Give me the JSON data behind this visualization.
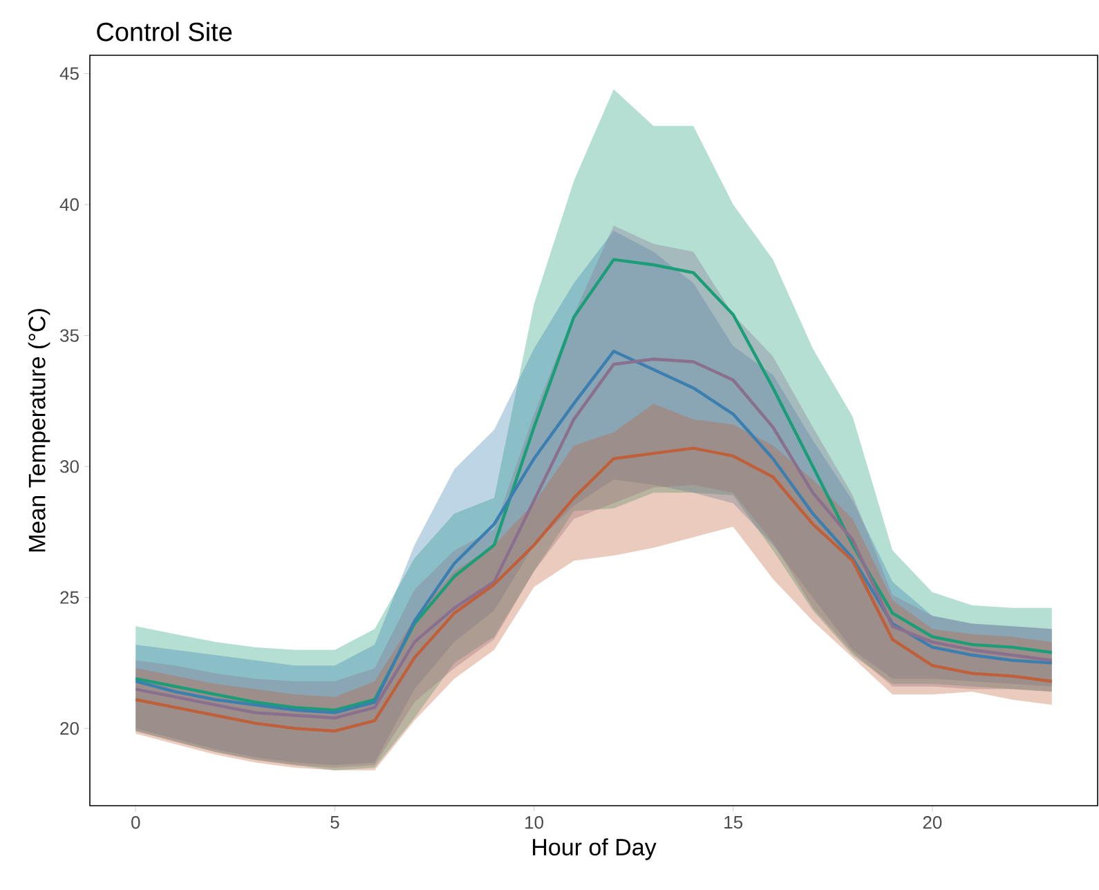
{
  "chart_data": {
    "type": "line",
    "title": "Control Site",
    "xlabel": "Hour of Day",
    "ylabel": "Mean Temperature (°C)",
    "x": [
      0,
      1,
      2,
      3,
      4,
      5,
      6,
      7,
      8,
      9,
      10,
      11,
      12,
      13,
      14,
      15,
      16,
      17,
      18,
      19,
      20,
      21,
      22,
      23
    ],
    "xlim": [
      -1.15,
      24.15
    ],
    "ylim": [
      17.05,
      45.7
    ],
    "xticks": [
      0,
      5,
      10,
      15,
      20
    ],
    "yticks": [
      20,
      25,
      30,
      35,
      40,
      45
    ],
    "marker": "none",
    "line_style": "solid",
    "series": [
      {
        "color": "#1b9e77",
        "values": [
          21.9,
          21.6,
          21.3,
          21.0,
          20.8,
          20.7,
          21.1,
          24.0,
          25.8,
          27.0,
          31.5,
          35.7,
          37.9,
          37.7,
          37.4,
          35.8,
          33.0,
          30.0,
          27.0,
          24.4,
          23.5,
          23.2,
          23.1,
          22.9
        ],
        "upper": [
          23.9,
          23.6,
          23.3,
          23.1,
          23.0,
          23.0,
          23.8,
          26.5,
          28.2,
          28.8,
          36.2,
          40.9,
          44.4,
          43.0,
          43.0,
          40.0,
          37.9,
          34.5,
          31.9,
          26.8,
          25.2,
          24.7,
          24.6,
          24.6
        ],
        "lower": [
          19.9,
          19.5,
          19.1,
          18.8,
          18.6,
          18.4,
          18.5,
          20.4,
          22.5,
          23.5,
          26.0,
          28.3,
          28.4,
          29.0,
          29.0,
          28.9,
          26.8,
          24.5,
          22.8,
          21.7,
          21.7,
          21.6,
          21.5,
          21.4
        ]
      },
      {
        "color": "#3b7fb0",
        "values": [
          21.8,
          21.4,
          21.1,
          20.9,
          20.7,
          20.6,
          21.0,
          24.1,
          26.3,
          27.8,
          30.3,
          32.4,
          34.4,
          33.7,
          33.0,
          32.0,
          30.3,
          28.2,
          26.5,
          24.0,
          23.1,
          22.8,
          22.6,
          22.5
        ],
        "upper": [
          23.2,
          23.0,
          22.8,
          22.6,
          22.4,
          22.4,
          23.2,
          27.0,
          29.9,
          31.4,
          34.5,
          37.0,
          39.0,
          38.2,
          37.0,
          34.6,
          33.5,
          31.0,
          28.7,
          25.6,
          24.3,
          24.0,
          23.9,
          23.8
        ],
        "lower": [
          20.0,
          19.6,
          19.2,
          18.9,
          18.7,
          18.6,
          18.7,
          21.5,
          23.3,
          24.5,
          27.0,
          28.5,
          29.5,
          29.3,
          29.0,
          28.6,
          27.0,
          25.0,
          23.0,
          21.9,
          21.9,
          21.8,
          21.7,
          21.6
        ]
      },
      {
        "color": "#8a6f8f",
        "values": [
          21.5,
          21.2,
          20.9,
          20.6,
          20.5,
          20.4,
          20.8,
          23.3,
          24.6,
          25.6,
          28.7,
          31.8,
          33.9,
          34.1,
          34.0,
          33.3,
          31.5,
          29.0,
          27.2,
          23.9,
          23.3,
          23.0,
          22.8,
          22.6
        ],
        "upper": [
          22.6,
          22.4,
          22.1,
          21.9,
          21.8,
          21.8,
          22.3,
          25.3,
          26.8,
          27.6,
          32.0,
          35.8,
          39.2,
          38.5,
          38.2,
          35.8,
          34.2,
          31.5,
          28.9,
          25.1,
          24.3,
          24.0,
          23.9,
          23.8
        ],
        "lower": [
          19.9,
          19.5,
          19.1,
          18.8,
          18.6,
          18.5,
          18.6,
          21.0,
          22.3,
          23.4,
          26.0,
          28.0,
          28.6,
          29.2,
          29.3,
          29.0,
          27.1,
          24.6,
          22.9,
          21.6,
          21.6,
          21.5,
          21.5,
          21.4
        ]
      },
      {
        "color": "#c0603a",
        "values": [
          21.1,
          20.8,
          20.5,
          20.2,
          20.0,
          19.9,
          20.3,
          22.7,
          24.4,
          25.5,
          27.0,
          28.8,
          30.3,
          30.5,
          30.7,
          30.4,
          29.6,
          27.8,
          26.4,
          23.4,
          22.4,
          22.1,
          22.0,
          21.8
        ],
        "upper": [
          22.3,
          22.0,
          21.7,
          21.5,
          21.3,
          21.2,
          21.8,
          24.2,
          26.0,
          27.0,
          28.6,
          30.8,
          31.3,
          32.4,
          31.8,
          31.6,
          30.8,
          29.5,
          28.0,
          24.9,
          23.8,
          23.6,
          23.5,
          23.3
        ],
        "lower": [
          19.8,
          19.4,
          19.0,
          18.7,
          18.5,
          18.4,
          18.4,
          20.3,
          21.9,
          23.0,
          25.4,
          26.4,
          26.6,
          26.9,
          27.3,
          27.7,
          25.7,
          24.1,
          22.7,
          21.3,
          21.3,
          21.4,
          21.1,
          20.9
        ]
      }
    ]
  }
}
